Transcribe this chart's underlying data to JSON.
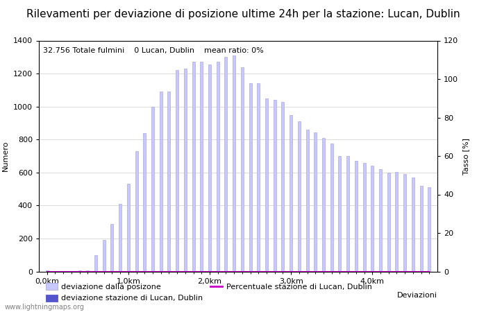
{
  "title": "Rilevamenti per deviazione di posizione ultime 24h per la stazione: Lucan, Dublin",
  "subtitle": "32.756 Totale fulmini    0 Lucan, Dublin    mean ratio: 0%",
  "xlabel": "Deviazioni",
  "ylabel_left": "Numero",
  "ylabel_right": "Tasso [%]",
  "watermark": "www.lightningmaps.org",
  "bar_values": [
    5,
    0,
    0,
    0,
    5,
    5,
    100,
    190,
    290,
    410,
    530,
    730,
    840,
    1000,
    1090,
    1090,
    1220,
    1230,
    1270,
    1270,
    1255,
    1270,
    1300,
    1310,
    1240,
    1140,
    1140,
    1050,
    1040,
    1030,
    950,
    910,
    860,
    845,
    810,
    775,
    700,
    700,
    670,
    660,
    640,
    620,
    600,
    605,
    590,
    570,
    520,
    510
  ],
  "station_values": [
    0,
    0,
    0,
    0,
    0,
    0,
    0,
    0,
    0,
    0,
    0,
    0,
    0,
    0,
    0,
    0,
    0,
    0,
    0,
    0,
    0,
    0,
    0,
    0,
    0,
    0,
    0,
    0,
    0,
    0,
    0,
    0,
    0,
    0,
    0,
    0,
    0,
    0,
    0,
    0,
    0,
    0,
    0,
    0,
    0,
    0,
    0,
    0
  ],
  "ratio_values": [
    0,
    0,
    0,
    0,
    0,
    0,
    0,
    0,
    0,
    0,
    0,
    0,
    0,
    0,
    0,
    0,
    0,
    0,
    0,
    0,
    0,
    0,
    0,
    0,
    0,
    0,
    0,
    0,
    0,
    0,
    0,
    0,
    0,
    0,
    0,
    0,
    0,
    0,
    0,
    0,
    0,
    0,
    0,
    0,
    0,
    0,
    0,
    0
  ],
  "n_bars": 48,
  "bar_color": "#c8c8ff",
  "bar_edge_color": "#aaaadd",
  "station_bar_color": "#5555cc",
  "ratio_line_color": "#cc00cc",
  "ylim_left": [
    0,
    1400
  ],
  "ylim_right": [
    0,
    120
  ],
  "xtick_positions": [
    0,
    10,
    20,
    30,
    40
  ],
  "xtick_labels": [
    "0,0km",
    "1,0km",
    "2,0km",
    "3,0km",
    "4,0km"
  ],
  "ytick_left": [
    0,
    200,
    400,
    600,
    800,
    1000,
    1200,
    1400
  ],
  "ytick_right": [
    0,
    20,
    40,
    60,
    80,
    100,
    120
  ],
  "legend_entries": [
    {
      "label": "deviazione dalla posizone",
      "color": "#c8c8ff",
      "edge": "#aaaadd",
      "type": "bar"
    },
    {
      "label": "deviazione stazione di Lucan, Dublin",
      "color": "#5555cc",
      "edge": "#5555cc",
      "type": "bar"
    },
    {
      "label": "Percentuale stazione di Lucan, Dublin",
      "color": "#cc00cc",
      "type": "line"
    }
  ],
  "title_fontsize": 11,
  "label_fontsize": 8,
  "tick_fontsize": 8,
  "legend_fontsize": 8,
  "subtitle_fontsize": 8,
  "watermark_fontsize": 7,
  "background_color": "#ffffff",
  "grid_color": "#cccccc"
}
